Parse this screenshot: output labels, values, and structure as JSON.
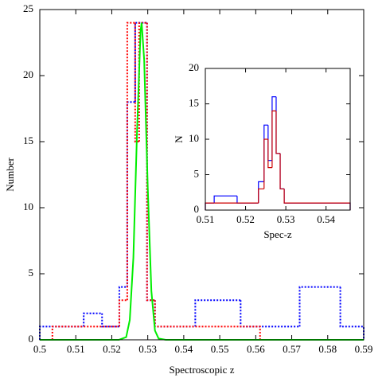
{
  "chart_data": [
    {
      "type": "histogram",
      "xlabel": "Spectroscopic z",
      "ylabel": "Number",
      "xlim": [
        0.5,
        0.59
      ],
      "ylim": [
        0,
        25
      ],
      "xticks": [
        0.5,
        0.51,
        0.52,
        0.53,
        0.54,
        0.55,
        0.56,
        0.57,
        0.58,
        0.59
      ],
      "yticks": [
        0,
        5,
        10,
        15,
        20,
        25
      ],
      "series": [
        {
          "color": "#0000ff",
          "line_style": "dotted",
          "bins": [
            0.5,
            0.5122,
            0.5173,
            0.5221,
            0.5243,
            0.5265,
            0.5298,
            0.532,
            0.5432,
            0.5558,
            0.5722,
            0.5835,
            0.59
          ],
          "values": [
            1,
            2,
            1,
            4,
            18,
            24,
            3,
            1,
            3,
            1,
            4,
            1
          ]
        },
        {
          "color": "#ff0000",
          "line_style": "dotted",
          "bins": [
            0.5035,
            0.5221,
            0.5243,
            0.5265,
            0.5276,
            0.5298,
            0.532,
            0.5612
          ],
          "values": [
            1,
            3,
            24,
            15,
            24,
            3,
            1
          ]
        }
      ],
      "curve": {
        "color": "#00ee00",
        "x": [
          0.5,
          0.522,
          0.524,
          0.525,
          0.526,
          0.527,
          0.528,
          0.5283,
          0.529,
          0.53,
          0.531,
          0.532,
          0.533,
          0.535,
          0.59
        ],
        "values": [
          0,
          0,
          0.2,
          1.5,
          6.2,
          15.6,
          23.4,
          24,
          21.2,
          11.5,
          3.7,
          0.7,
          0.1,
          0,
          0
        ]
      }
    },
    {
      "type": "histogram",
      "xlabel": "Spec-z",
      "ylabel": "N",
      "xlim": [
        0.51,
        0.546
      ],
      "ylim": [
        0,
        20
      ],
      "xticks": [
        0.51,
        0.52,
        0.53,
        0.54
      ],
      "yticks": [
        0,
        5,
        10,
        15,
        20
      ],
      "series": [
        {
          "color": "#0000ff",
          "line_style": "solid",
          "bins": [
            0.51,
            0.5122,
            0.5179,
            0.5232,
            0.5246,
            0.5256,
            0.5266,
            0.5276,
            0.5286,
            0.5296,
            0.546
          ],
          "values": [
            1,
            2,
            1,
            4,
            12,
            7,
            16,
            8,
            3,
            1
          ]
        },
        {
          "color": "#cc0000",
          "line_style": "solid",
          "bins": [
            0.51,
            0.5122,
            0.5179,
            0.5232,
            0.5246,
            0.5256,
            0.5266,
            0.5276,
            0.5286,
            0.5296,
            0.546
          ],
          "values": [
            1,
            1,
            1,
            3,
            10,
            6,
            14,
            8,
            3,
            1
          ]
        }
      ]
    }
  ]
}
